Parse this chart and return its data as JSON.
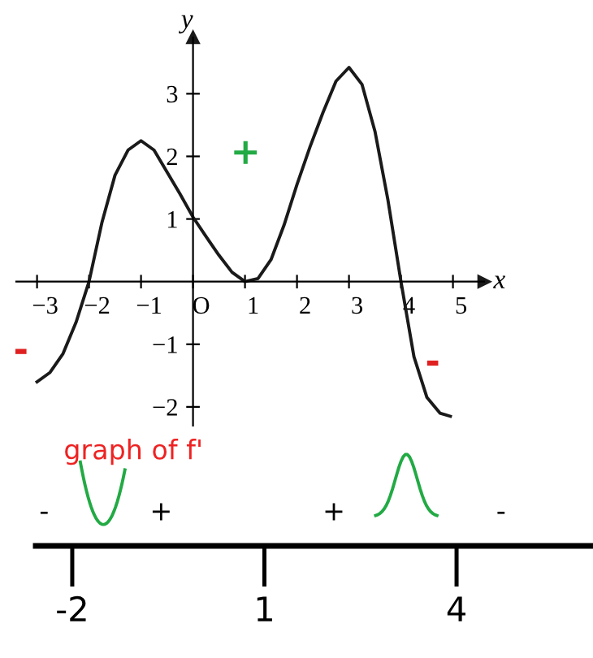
{
  "chart_data": [
    {
      "type": "line",
      "xlabel": "x",
      "ylabel": "y",
      "xlim": [
        -3.4,
        5.6
      ],
      "ylim": [
        -2.3,
        3.9
      ],
      "xticks": [
        -3,
        -2,
        -1,
        {
          "value": 0,
          "label": "O"
        },
        1,
        2,
        3,
        4,
        5
      ],
      "yticks": [
        -2,
        -1,
        1,
        2,
        3
      ],
      "series": [
        {
          "color": "#1a1a1a",
          "x": [
            -3,
            -2.75,
            -2.5,
            -2.25,
            -2,
            -1.75,
            -1.5,
            -1.25,
            -1,
            -0.75,
            -0.5,
            -0.25,
            0,
            0.25,
            0.5,
            0.75,
            1,
            1.25,
            1.5,
            1.75,
            2,
            2.25,
            2.5,
            2.75,
            3,
            3.25,
            3.5,
            3.75,
            4,
            4.25,
            4.5,
            4.75,
            4.95
          ],
          "values": [
            -1.6,
            -1.45,
            -1.15,
            -0.65,
            0,
            0.95,
            1.7,
            2.1,
            2.25,
            2.1,
            1.75,
            1.4,
            1.03,
            0.72,
            0.42,
            0.15,
            0,
            0.05,
            0.35,
            0.9,
            1.55,
            2.15,
            2.7,
            3.2,
            3.42,
            3.15,
            2.4,
            1.3,
            0,
            -1.2,
            -1.85,
            -2.1,
            -2.15
          ]
        }
      ],
      "annotations": [
        "+",
        "-",
        "-"
      ],
      "grid": false,
      "legend": false
    },
    {
      "type": "other",
      "title": "graph of f'",
      "categories": [
        "-2",
        "1",
        "4"
      ],
      "annotations": [
        "-",
        "+",
        "+",
        "-"
      ]
    }
  ]
}
